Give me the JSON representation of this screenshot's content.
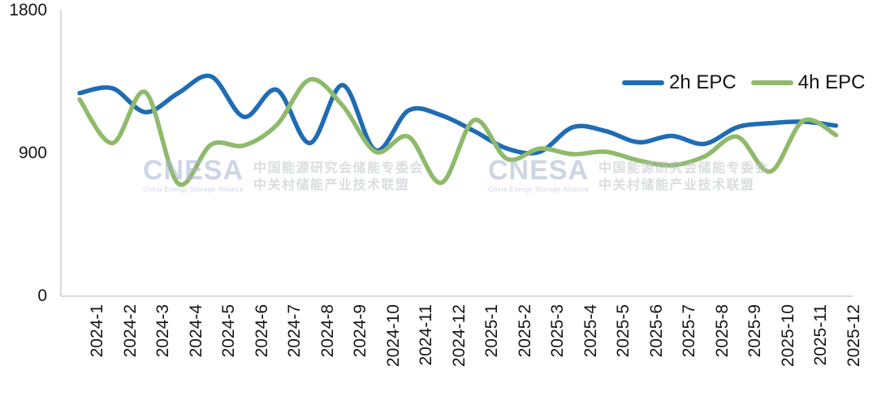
{
  "chart_data": {
    "type": "line",
    "title": "",
    "categories": [
      "2024-1",
      "2024-2",
      "2024-3",
      "2024-4",
      "2024-5",
      "2024-6",
      "2024-7",
      "2024-8",
      "2024-9",
      "2024-10",
      "2024-11",
      "2024-12",
      "2025-1",
      "2025-2",
      "2025-3",
      "2025-4",
      "2025-5",
      "2025-6",
      "2025-7",
      "2025-8",
      "2025-9",
      "2025-10",
      "2025-11",
      "2025-12"
    ],
    "series": [
      {
        "name": "2h EPC",
        "color": "#1f6cb4",
        "values": [
          1280,
          1310,
          1160,
          1280,
          1385,
          1130,
          1300,
          965,
          1330,
          920,
          1170,
          1140,
          1040,
          930,
          910,
          1065,
          1040,
          970,
          1010,
          960,
          1065,
          1090,
          1100,
          1075
        ]
      },
      {
        "name": "4h EPC",
        "color": "#8fba6b",
        "values": [
          1240,
          965,
          1285,
          710,
          955,
          950,
          1080,
          1365,
          1200,
          910,
          1005,
          715,
          1110,
          865,
          930,
          895,
          910,
          855,
          825,
          880,
          1005,
          785,
          1105,
          1015
        ]
      }
    ],
    "y_ticks": [
      0,
      900,
      1800
    ],
    "ylim": [
      0,
      1800
    ],
    "grid": false,
    "legend_position": "top-right",
    "xlabel": "",
    "ylabel": ""
  },
  "axis_colors": {
    "line": "#d6d6d6"
  },
  "watermark": {
    "logo": "CNESA",
    "logo_subtitle": "China Energy Storage Alliance",
    "line1": "中国能源研究会储能专委会",
    "line2": "中关村储能产业技术联盟"
  }
}
